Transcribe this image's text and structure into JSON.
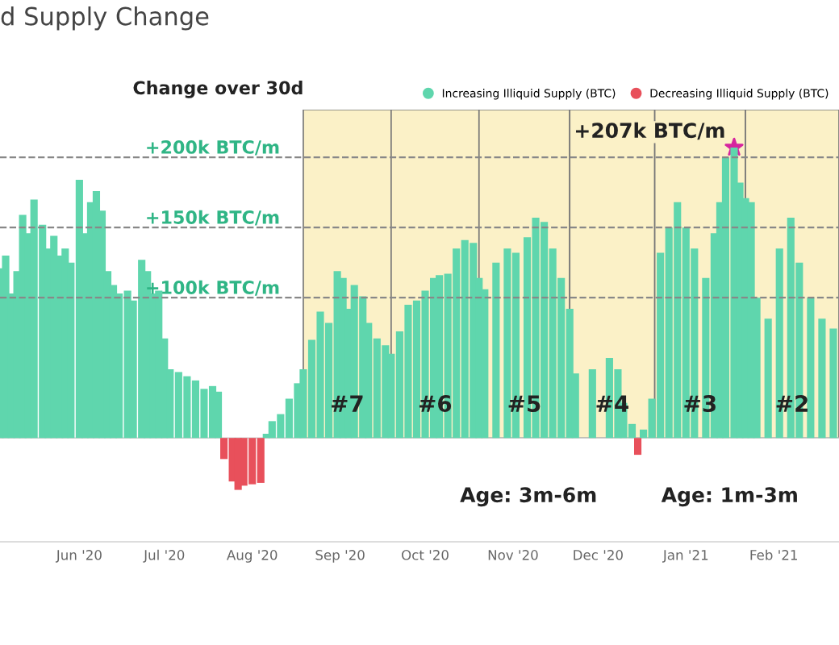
{
  "chart_data": {
    "type": "bar",
    "title": "d Supply Change",
    "annotations": [
      "Change over 30d",
      {
        "text": "+207k BTC/m",
        "x": "2021-01-18",
        "y": 207000
      },
      "Age: 3m-6m",
      "Age: 1m-3m"
    ],
    "series": [
      {
        "name": "Increasing Illiquid Supply (BTC)",
        "color": "#5fd6ad",
        "x": [
          "2020-05-04",
          "2020-05-06",
          "2020-05-08",
          "2020-05-10",
          "2020-05-12",
          "2020-05-14",
          "2020-05-16",
          "2020-05-19",
          "2020-05-21",
          "2020-05-23",
          "2020-05-25",
          "2020-05-27",
          "2020-05-29",
          "2020-06-01",
          "2020-06-03",
          "2020-06-05",
          "2020-06-07",
          "2020-06-09",
          "2020-06-11",
          "2020-06-13",
          "2020-06-15",
          "2020-06-18",
          "2020-06-20",
          "2020-06-23",
          "2020-06-25",
          "2020-06-27",
          "2020-06-29",
          "2020-07-01",
          "2020-07-03",
          "2020-07-06",
          "2020-07-09",
          "2020-07-12",
          "2020-07-15",
          "2020-07-18",
          "2020-07-20",
          "2020-08-06",
          "2020-08-08",
          "2020-08-11",
          "2020-08-14",
          "2020-08-17",
          "2020-08-19",
          "2020-08-22",
          "2020-08-25",
          "2020-08-28",
          "2020-08-31",
          "2020-09-02",
          "2020-09-04",
          "2020-09-06",
          "2020-09-09",
          "2020-09-11",
          "2020-09-14",
          "2020-09-17",
          "2020-09-19",
          "2020-09-22",
          "2020-09-25",
          "2020-09-28",
          "2020-10-01",
          "2020-10-04",
          "2020-10-06",
          "2020-10-09",
          "2020-10-12",
          "2020-10-15",
          "2020-10-18",
          "2020-10-20",
          "2020-10-22",
          "2020-10-26",
          "2020-10-30",
          "2020-11-02",
          "2020-11-06",
          "2020-11-09",
          "2020-11-12",
          "2020-11-15",
          "2020-11-18",
          "2020-11-21",
          "2020-11-23",
          "2020-11-29",
          "2020-12-05",
          "2020-12-08",
          "2020-12-10",
          "2020-12-13",
          "2020-12-17",
          "2020-12-20",
          "2020-12-23",
          "2020-12-26",
          "2020-12-29",
          "2021-01-01",
          "2021-01-04",
          "2021-01-08",
          "2021-01-11",
          "2021-01-13",
          "2021-01-15",
          "2021-01-18",
          "2021-01-20",
          "2021-01-22",
          "2021-01-24",
          "2021-01-26",
          "2021-01-30",
          "2021-02-03",
          "2021-02-07",
          "2021-02-10",
          "2021-02-14",
          "2021-02-18",
          "2021-02-22"
        ],
        "values": [
          121000,
          130000,
          103000,
          119000,
          159000,
          146000,
          170000,
          152000,
          135000,
          144000,
          130000,
          135000,
          125000,
          184000,
          146000,
          168000,
          176000,
          162000,
          119000,
          109000,
          103000,
          105000,
          98000,
          127000,
          119000,
          103000,
          105000,
          71000,
          49000,
          47000,
          44000,
          41000,
          35000,
          37000,
          33000,
          3000,
          12000,
          17000,
          28000,
          39000,
          49000,
          70000,
          90000,
          82000,
          119000,
          114000,
          92000,
          109000,
          101000,
          82000,
          71000,
          66000,
          60000,
          76000,
          95000,
          98000,
          105000,
          114000,
          116000,
          117000,
          135000,
          141000,
          139000,
          114000,
          106000,
          125000,
          135000,
          132000,
          143000,
          157000,
          154000,
          135000,
          114000,
          92000,
          46000,
          49000,
          57000,
          49000,
          25000,
          10000,
          6000,
          28000,
          132000,
          150000,
          168000,
          150000,
          135000,
          114000,
          146000,
          168000,
          200000,
          207000,
          182000,
          171000,
          168000,
          100000,
          85000,
          135000,
          157000,
          125000,
          100000,
          85000,
          78000
        ]
      },
      {
        "name": "Decreasing Illiquid Supply (BTC)",
        "color": "#e8505b",
        "x": [
          "2020-07-22",
          "2020-07-25",
          "2020-07-27",
          "2020-07-29",
          "2020-08-01",
          "2020-08-04",
          "2020-12-15"
        ],
        "values": [
          -15000,
          -31000,
          -37000,
          -34000,
          -33000,
          -32000,
          -12000
        ]
      },
      {
        "type": "scatter",
        "color": "#d6249f",
        "marker": "star",
        "x": [
          "2021-01-18"
        ],
        "values": [
          207000
        ]
      }
    ],
    "bands": [
      {
        "axis": "x",
        "from": "2020-08-19",
        "to": "2020-09-19",
        "label": "#7",
        "color": "#fbf1c7"
      },
      {
        "axis": "x",
        "from": "2020-09-19",
        "to": "2020-10-20",
        "label": "#6",
        "color": "#fbf1c7"
      },
      {
        "axis": "x",
        "from": "2020-10-20",
        "to": "2020-11-21",
        "label": "#5",
        "color": "#fbf1c7"
      },
      {
        "axis": "x",
        "from": "2020-11-21",
        "to": "2020-12-21",
        "label": "#4",
        "color": "#fbf1c7"
      },
      {
        "axis": "x",
        "from": "2020-12-21",
        "to": "2021-01-22",
        "label": "#3",
        "color": "#fbf1c7"
      },
      {
        "axis": "x",
        "from": "2021-01-22",
        "to": "2021-02-24",
        "label": "#2",
        "color": "#fbf1c7"
      }
    ],
    "ref_lines": [
      {
        "axis": "y",
        "value": 100000,
        "label": "+100k BTC/m",
        "color": "#888888",
        "line_style": "dashed"
      },
      {
        "axis": "y",
        "value": 150000,
        "label": "+150k BTC/m",
        "color": "#888888",
        "line_style": "dashed"
      },
      {
        "axis": "y",
        "value": 200000,
        "label": "+200k BTC/m",
        "color": "#888888",
        "line_style": "dashed"
      }
    ],
    "xlim": [
      "2020-05-04",
      "2021-02-24"
    ],
    "ylim": [
      -74000,
      234000
    ],
    "xticks": [
      {
        "value": "2020-06-01",
        "label": "Jun '20"
      },
      {
        "value": "2020-07-01",
        "label": "Jul '20"
      },
      {
        "value": "2020-08-01",
        "label": "Aug '20"
      },
      {
        "value": "2020-09-01",
        "label": "Sep '20"
      },
      {
        "value": "2020-10-01",
        "label": "Oct '20"
      },
      {
        "value": "2020-11-01",
        "label": "Nov '20"
      },
      {
        "value": "2020-12-01",
        "label": "Dec '20"
      },
      {
        "value": "2021-01-01",
        "label": "Jan '21"
      },
      {
        "value": "2021-02-01",
        "label": "Feb '21"
      }
    ],
    "tick_labels": "x",
    "grid": false,
    "legend": "top right"
  }
}
